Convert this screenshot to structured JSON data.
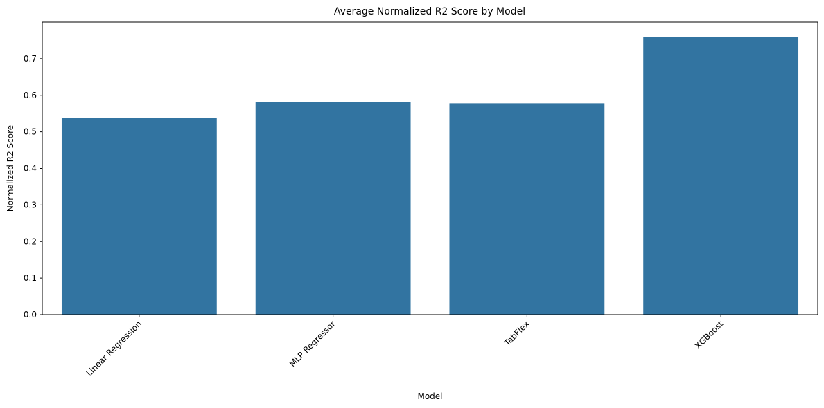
{
  "chart_data": {
    "type": "bar",
    "title": "Average Normalized R2 Score by Model",
    "xlabel": "Model",
    "ylabel": "Normalized R2 Score",
    "categories": [
      "Linear Regression",
      "MLP Regressor",
      "TabFlex",
      "XGBoost"
    ],
    "values": [
      0.539,
      0.582,
      0.578,
      0.76
    ],
    "ylim": [
      0,
      0.8
    ],
    "yticks": [
      0.0,
      0.1,
      0.2,
      0.3,
      0.4,
      0.5,
      0.6,
      0.7
    ],
    "ytick_labels": [
      "0.0",
      "0.1",
      "0.2",
      "0.3",
      "0.4",
      "0.5",
      "0.6",
      "0.7"
    ],
    "bar_color": "#3274a1",
    "grid": false,
    "legend": "none"
  }
}
